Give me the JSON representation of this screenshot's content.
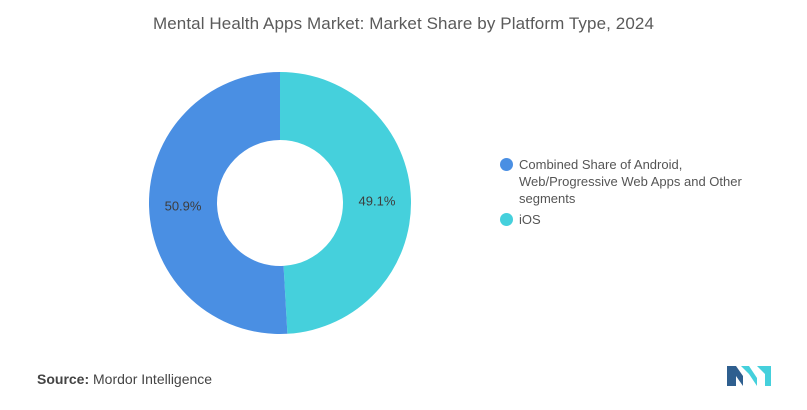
{
  "header": {
    "title": "Mental Health Apps Market: Market Share by Platform Type, 2024"
  },
  "chart_data": {
    "type": "pie",
    "donut": true,
    "title": "Mental Health Apps Market: Market Share by Platform Type, 2024",
    "legend_position": "right",
    "slices": [
      {
        "label": "iOS",
        "value": 49.1,
        "display": "49.1%",
        "color": "#45d0dc"
      },
      {
        "label": "Combined Share of Android, Web/Progressive Web Apps and Other segments",
        "value": 50.9,
        "display": "50.9%",
        "color": "#4a8fe3"
      }
    ]
  },
  "legend": {
    "items": [
      {
        "lines": [
          "Combined Share of Android,",
          "Web/Progressive Web Apps and Other",
          "segments"
        ],
        "color": "#4a8fe3"
      },
      {
        "lines": [
          "iOS"
        ],
        "color": "#45d0dc"
      }
    ]
  },
  "footer": {
    "source_label": "Source:",
    "source_value": "Mordor Intelligence"
  },
  "logo": {
    "icon": "mordor-intelligence-logo-icon",
    "colors": [
      "#2f5f8f",
      "#45d0dc"
    ]
  }
}
